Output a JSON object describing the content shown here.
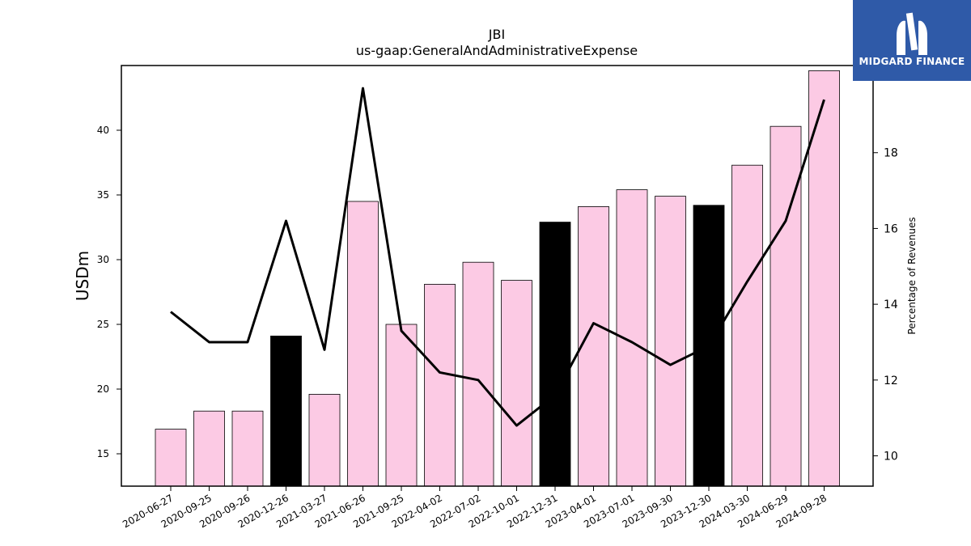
{
  "logo": {
    "text": "MIDGARD FINANCE",
    "background": "#2f5aa8"
  },
  "chart_data": {
    "type": "bar",
    "title": "JBI",
    "subtitle": "us-gaap:GeneralAndAdministrativeExpense",
    "ylabel": "USDm",
    "y2label": "Percentage of Revenues",
    "ylim": [
      12.5,
      45.0
    ],
    "y2lim": [
      9.2,
      20.3
    ],
    "yticks": [
      15,
      20,
      25,
      30,
      35,
      40
    ],
    "y2ticks": [
      10,
      12,
      14,
      16,
      18
    ],
    "categories": [
      "2020-06-27",
      "2020-09-25",
      "2020-09-26",
      "2020-12-26",
      "2021-03-27",
      "2021-06-26",
      "2021-09-25",
      "2022-04-02",
      "2022-07-02",
      "2022-10-01",
      "2022-12-31",
      "2023-04-01",
      "2023-07-01",
      "2023-09-30",
      "2023-12-30",
      "2024-03-30",
      "2024-06-29",
      "2024-09-28"
    ],
    "series": [
      {
        "kind": "bar",
        "values": [
          16.9,
          18.3,
          18.3,
          24.1,
          19.6,
          34.5,
          25.0,
          28.1,
          29.8,
          28.4,
          32.9,
          34.1,
          35.4,
          34.9,
          34.2,
          37.3,
          40.3,
          44.6
        ]
      },
      {
        "kind": "line",
        "axis": "right",
        "values": [
          13.8,
          13.0,
          13.0,
          16.2,
          12.8,
          19.7,
          13.3,
          12.2,
          12.0,
          10.8,
          11.6,
          13.5,
          13.0,
          12.4,
          12.9,
          14.6,
          16.2,
          19.4
        ]
      }
    ],
    "bar_colors": [
      "#fccae4",
      "#fccae4",
      "#fccae4",
      "#000000",
      "#fccae4",
      "#fccae4",
      "#fccae4",
      "#fccae4",
      "#fccae4",
      "#fccae4",
      "#000000",
      "#fccae4",
      "#fccae4",
      "#fccae4",
      "#000000",
      "#fccae4",
      "#fccae4",
      "#fccae4"
    ],
    "line_color": "#000000",
    "grid": false
  }
}
